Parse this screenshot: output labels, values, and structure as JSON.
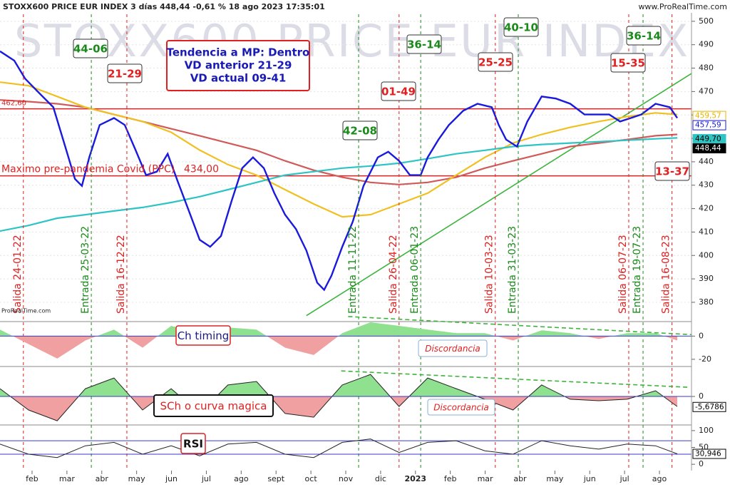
{
  "chart_data": [
    {
      "type": "line",
      "title": "STOXX600 PRICE EUR INDEX 3 días 448,44 -0,61 % 18 ago 2023 17:35:01",
      "source": "www.ProRealTime.com",
      "watermark": "STOXX600 PRICE EUR INDEX",
      "credit": "ProRealTime.com",
      "xlim": [
        1.08,
        20.92
      ],
      "xticks": [
        {
          "value": 2,
          "label": "feb"
        },
        {
          "value": 3,
          "label": "mar"
        },
        {
          "value": 4,
          "label": "abr"
        },
        {
          "value": 5,
          "label": "may"
        },
        {
          "value": 6,
          "label": "jun"
        },
        {
          "value": 7,
          "label": "jul"
        },
        {
          "value": 8,
          "label": "ago"
        },
        {
          "value": 9,
          "label": "sept"
        },
        {
          "value": 10,
          "label": "oct"
        },
        {
          "value": 11,
          "label": "nov"
        },
        {
          "value": 12,
          "label": "dic"
        },
        {
          "value": 13,
          "label": "2023"
        },
        {
          "value": 14,
          "label": "feb"
        },
        {
          "value": 15,
          "label": "mar"
        },
        {
          "value": 16,
          "label": "abr"
        },
        {
          "value": 17,
          "label": "may"
        },
        {
          "value": 18,
          "label": "jun"
        },
        {
          "value": 19,
          "label": "jul"
        },
        {
          "value": 20,
          "label": "ago"
        }
      ],
      "ylim": [
        374.5,
        503
      ],
      "yticks": [
        380,
        390,
        400,
        410,
        420,
        430,
        440,
        450,
        460,
        470,
        480,
        490,
        500
      ],
      "grid": true,
      "series": [
        {
          "color": "#d05a5a",
          "x": [
            1.08,
            1.9,
            2.72,
            3.53,
            4.35,
            5.17,
            5.99,
            6.81,
            7.62,
            8.44,
            9.26,
            10.08,
            10.9,
            11.71,
            12.53,
            13.35,
            14.17,
            14.99,
            15.8,
            16.62,
            17.44,
            18.26,
            19.07,
            19.89,
            20.51
          ],
          "values": [
            466.4,
            465.7,
            464.8,
            463.3,
            460.2,
            457.2,
            454.1,
            451.1,
            448.0,
            444.9,
            440.4,
            436.4,
            433.4,
            431.2,
            430.3,
            431.2,
            433.4,
            437.3,
            440.4,
            443.4,
            446.5,
            448.0,
            449.5,
            451.1,
            451.7
          ]
        },
        {
          "color": "#f0c020",
          "x": [
            1.08,
            1.9,
            2.72,
            3.53,
            4.35,
            5.17,
            5.99,
            6.81,
            7.62,
            8.44,
            9.26,
            10.08,
            10.9,
            11.71,
            12.53,
            13.35,
            14.17,
            14.99,
            15.8,
            16.62,
            17.44,
            18.26,
            19.07,
            19.89,
            20.51
          ],
          "values": [
            474.0,
            472.5,
            467.9,
            463.3,
            460.2,
            457.2,
            452.6,
            445.0,
            438.8,
            434.3,
            428.1,
            422.0,
            416.5,
            417.4,
            422.0,
            426.6,
            434.3,
            441.9,
            448.0,
            451.7,
            454.7,
            457.2,
            459.3,
            460.9,
            460.2
          ]
        },
        {
          "color": "#2ec4c4",
          "x": [
            1.08,
            1.9,
            2.72,
            3.53,
            4.35,
            5.17,
            5.99,
            6.81,
            7.62,
            8.44,
            9.26,
            10.08,
            10.9,
            11.71,
            12.53,
            13.35,
            14.17,
            14.99,
            15.8,
            16.62,
            17.44,
            18.26,
            19.07,
            19.89,
            20.51
          ],
          "values": [
            410.4,
            412.8,
            415.9,
            417.4,
            419.0,
            420.5,
            422.6,
            425.1,
            428.1,
            431.2,
            434.3,
            435.8,
            437.3,
            438.2,
            439.4,
            441.3,
            443.4,
            444.9,
            446.5,
            447.4,
            448.0,
            448.6,
            449.2,
            449.8,
            450.2
          ]
        },
        {
          "color": "#1a1adc",
          "x": [
            1.08,
            1.49,
            1.8,
            2.2,
            2.61,
            2.92,
            3.23,
            3.43,
            3.64,
            3.94,
            4.35,
            4.66,
            4.97,
            5.27,
            5.58,
            5.89,
            6.19,
            6.5,
            6.81,
            7.11,
            7.42,
            7.73,
            8.03,
            8.34,
            8.65,
            8.95,
            9.26,
            9.57,
            9.87,
            10.18,
            10.38,
            10.59,
            10.9,
            11.2,
            11.51,
            11.92,
            12.22,
            12.53,
            12.84,
            13.15,
            13.35,
            13.66,
            13.96,
            14.37,
            14.78,
            15.19,
            15.39,
            15.6,
            15.91,
            16.21,
            16.62,
            17.03,
            17.44,
            17.85,
            18.26,
            18.56,
            18.87,
            19.18,
            19.48,
            19.89,
            20.3,
            20.51
          ],
          "values": [
            487.2,
            483.2,
            475.5,
            469.4,
            463.3,
            448.0,
            432.7,
            429.7,
            441.9,
            455.7,
            458.7,
            455.7,
            445.0,
            434.3,
            435.8,
            443.4,
            431.2,
            419.0,
            406.7,
            403.7,
            408.3,
            423.5,
            437.3,
            441.9,
            437.3,
            426.6,
            417.4,
            411.3,
            402.1,
            388.4,
            385.3,
            391.4,
            403.7,
            414.4,
            429.7,
            441.9,
            444.3,
            440.4,
            434.3,
            434.3,
            441.9,
            449.5,
            455.7,
            461.8,
            464.8,
            463.3,
            455.7,
            449.5,
            446.5,
            457.2,
            467.9,
            467.0,
            464.8,
            460.2,
            460.2,
            460.2,
            457.2,
            458.7,
            460.2,
            464.8,
            463.3,
            458.7
          ]
        }
      ],
      "levels": [
        {
          "value": 462.6,
          "label": "462,60",
          "color": "#e02020"
        },
        {
          "value": 434,
          "label": "434,00",
          "note": "Maximo pre-pandemia Covid (PPC)",
          "color": "#e02020"
        }
      ],
      "trendlines": [
        {
          "x": [
            9.87,
            20.92
          ],
          "values": [
            374.3,
            477.7
          ],
          "color": "#3cb43c"
        }
      ],
      "last_labels": [
        {
          "value": 459.57,
          "label": "459,57",
          "color": "#e8b400",
          "filled": false
        },
        {
          "value": 457.59,
          "label": "457,59",
          "color": "#1a1adc",
          "filled": false
        },
        {
          "value": 449.7,
          "label": "449,70",
          "color": "#2ec4c4",
          "filled": true
        },
        {
          "value": 448.44,
          "label": "448,44",
          "color": "#000000",
          "filled": true
        }
      ],
      "signals": [
        {
          "x": 1.75,
          "label": "Salida 24-01-22",
          "color": "#e02020"
        },
        {
          "x": 3.7,
          "label": "Entrada 25-03-22",
          "color": "#1a8a1a"
        },
        {
          "x": 4.72,
          "label": "Salida 16-12-22",
          "color": "#e02020"
        },
        {
          "x": 11.37,
          "label": "Entrada 11-11-22",
          "color": "#1a8a1a"
        },
        {
          "x": 12.53,
          "label": "Salida 26-04-22",
          "color": "#e02020"
        },
        {
          "x": 13.15,
          "label": "Entrada 06-01-23",
          "color": "#1a8a1a"
        },
        {
          "x": 15.29,
          "label": "Salida 10-03-23",
          "color": "#e02020"
        },
        {
          "x": 15.95,
          "label": "Entrada 31-03-23",
          "color": "#1a8a1a"
        },
        {
          "x": 19.12,
          "label": "Salida 06-07-23",
          "color": "#e02020"
        },
        {
          "x": 19.53,
          "label": "Entrada 19-07-23",
          "color": "#1a8a1a"
        },
        {
          "x": 20.36,
          "label": "Salida 16-08-23",
          "color": "#e02020"
        }
      ],
      "boxes": [
        {
          "label": "44-06",
          "color": "#1a8a1a"
        },
        {
          "label": "21-29",
          "color": "#e02020"
        },
        {
          "label": "01-49",
          "color": "#e02020"
        },
        {
          "label": "42-08",
          "color": "#1a8a1a"
        },
        {
          "label": "36-14",
          "color": "#1a8a1a"
        },
        {
          "label": "40-10",
          "color": "#1a8a1a"
        },
        {
          "label": "25-25",
          "color": "#e02020"
        },
        {
          "label": "36-14",
          "color": "#1a8a1a"
        },
        {
          "label": "15-35",
          "color": "#e02020"
        },
        {
          "label": "13-37",
          "color": "#e02020"
        }
      ],
      "note": [
        "Tendencia a MP: Dentro",
        "VD anterior 21-29",
        "VD actual 09-41"
      ]
    },
    {
      "type": "area",
      "label": "Ch timing",
      "note": "Discordancia",
      "x": [
        1.08,
        1.9,
        2.72,
        3.53,
        4.35,
        5.17,
        5.99,
        6.81,
        7.62,
        8.44,
        9.26,
        10.08,
        10.9,
        11.71,
        12.53,
        13.35,
        14.17,
        14.99,
        15.8,
        16.62,
        17.44,
        18.26,
        19.07,
        19.89,
        20.51
      ],
      "values": [
        5.6,
        -6.9,
        -19.4,
        -3.8,
        5.6,
        -10,
        8.8,
        2.5,
        7.5,
        5.6,
        -10,
        -16.3,
        2.5,
        11.9,
        8.8,
        5.6,
        2.5,
        2.5,
        -3.8,
        5,
        2.5,
        -2.5,
        2.5,
        2.5,
        -3.8
      ],
      "ylim": [
        -25.6,
        11.9
      ],
      "yticks": [
        -20,
        0
      ],
      "up_color": "#8fe08f",
      "down_color": "#f0a0a0",
      "trendlines": [
        {
          "x": [
            11.07,
            20.92
          ],
          "values": [
            16.9,
            1.25
          ],
          "color": "#3cb43c"
        }
      ]
    },
    {
      "type": "area",
      "label": "SCh o curva magica",
      "note": "Discordancia",
      "x": [
        1.08,
        1.9,
        2.72,
        3.53,
        4.35,
        5.17,
        5.99,
        6.81,
        7.62,
        8.44,
        9.26,
        10.08,
        10.9,
        11.71,
        12.53,
        13.35,
        14.17,
        14.99,
        15.8,
        16.62,
        17.44,
        18.26,
        19.07,
        19.89,
        20.51
      ],
      "values": [
        4.2,
        -7.3,
        -13.1,
        4.2,
        10,
        -7.3,
        4.2,
        -9.2,
        6.2,
        8.1,
        -9.2,
        -11.2,
        6.2,
        11.9,
        -5.4,
        10,
        4.2,
        -1.5,
        -7.3,
        6.2,
        -1.5,
        -2.3,
        -1.5,
        3.1,
        -5.4
      ],
      "ylim": [
        -15,
        15.8
      ],
      "yticks": [
        0
      ],
      "up_color": "#8fe08f",
      "down_color": "#f0a0a0",
      "line_color": "#222222",
      "trendlines": [
        {
          "x": [
            10.87,
            20.82
          ],
          "values": [
            13.8,
            5.0
          ],
          "color": "#3cb43c"
        }
      ],
      "last_labels": [
        {
          "value": -5.6786,
          "label": "-5,6786",
          "color": "#000000",
          "filled": false
        }
      ]
    },
    {
      "type": "rsi",
      "label": "RSI",
      "x": [
        1.08,
        1.9,
        2.72,
        3.53,
        4.35,
        5.17,
        5.99,
        6.81,
        7.62,
        8.44,
        9.26,
        10.08,
        10.9,
        11.71,
        12.53,
        13.35,
        14.17,
        14.99,
        15.8,
        16.62,
        17.44,
        18.26,
        19.07,
        19.89,
        20.51
      ],
      "values": [
        60,
        30,
        20,
        55,
        65,
        30,
        55,
        25,
        60,
        65,
        30,
        20,
        65,
        75,
        35,
        65,
        70,
        40,
        30,
        70,
        55,
        45,
        60,
        55,
        30.9
      ],
      "ylim": [
        -18.75,
        114.6
      ],
      "yticks": [
        0,
        50,
        100
      ],
      "line_color": "#222222",
      "levels": [
        {
          "value": 70,
          "color": "#3a3ac8"
        },
        {
          "value": 30,
          "color": "#3a3ac8"
        }
      ],
      "last_labels": [
        {
          "value": 30.946,
          "label": "30,946",
          "color": "#000000",
          "filled": false
        }
      ]
    }
  ]
}
